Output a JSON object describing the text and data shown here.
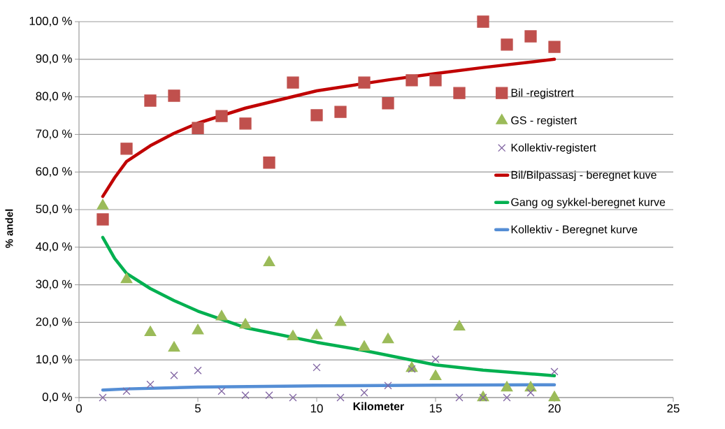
{
  "chart_data": {
    "type": "scatter",
    "xlabel": "Kilometer",
    "ylabel": "% andel",
    "xlim": [
      0,
      25
    ],
    "xticks": [
      0,
      5,
      10,
      15,
      20,
      25
    ],
    "ylim": [
      0,
      100
    ],
    "yticks": [
      {
        "value": 0,
        "label": "0,0 %"
      },
      {
        "value": 10,
        "label": "10,0 %"
      },
      {
        "value": 20,
        "label": "20,0 %"
      },
      {
        "value": 30,
        "label": "30,0 %"
      },
      {
        "value": 40,
        "label": "40,0 %"
      },
      {
        "value": 50,
        "label": "50,0 %"
      },
      {
        "value": 60,
        "label": "60,0 %"
      },
      {
        "value": 70,
        "label": "70,0 %"
      },
      {
        "value": 80,
        "label": "80,0 %"
      },
      {
        "value": 90,
        "label": "90,0 %"
      },
      {
        "value": 100,
        "label": "100,0 %"
      }
    ],
    "grid": "y",
    "legend": "right",
    "series": [
      {
        "name": "Bil -registrert",
        "type": "scatter",
        "marker": "square",
        "color": "#c0504d",
        "x": [
          1,
          2,
          3,
          4,
          5,
          6,
          7,
          8,
          9,
          10,
          11,
          12,
          13,
          14,
          15,
          16,
          17,
          18,
          19,
          20
        ],
        "values": [
          47.4,
          66.2,
          79.0,
          80.3,
          71.7,
          74.9,
          72.9,
          62.5,
          83.8,
          75.1,
          76.0,
          83.8,
          78.3,
          84.4,
          84.4,
          81.0,
          100,
          93.9,
          96.1,
          93.3
        ]
      },
      {
        "name": "GS - registert",
        "type": "scatter",
        "marker": "triangle",
        "color": "#9bbb59",
        "x": [
          1,
          2,
          3,
          4,
          5,
          6,
          7,
          8,
          9,
          10,
          11,
          12,
          13,
          14,
          15,
          16,
          17,
          18,
          19,
          20
        ],
        "values": [
          51.0,
          31.4,
          17.3,
          13.2,
          17.8,
          21.5,
          19.3,
          35.9,
          16.2,
          16.5,
          20.0,
          13.4,
          15.4,
          7.8,
          5.6,
          18.8,
          0.0,
          2.6,
          2.6,
          0.0
        ]
      },
      {
        "name": "Kollektiv-registert",
        "type": "scatter",
        "marker": "cross",
        "color": "#8064a2",
        "x": [
          1,
          2,
          3,
          4,
          5,
          6,
          7,
          8,
          9,
          10,
          11,
          12,
          13,
          14,
          15,
          16,
          17,
          18,
          19,
          20
        ],
        "values": [
          0.0,
          1.7,
          3.5,
          5.9,
          7.2,
          1.7,
          0.6,
          0.6,
          0.0,
          8.0,
          0.0,
          1.3,
          3.2,
          7.6,
          10.2,
          0.0,
          0.0,
          0.0,
          1.3,
          6.9
        ]
      },
      {
        "name": "Bil/Bilpassasj - beregnet kuve",
        "type": "line",
        "marker": "none",
        "color": "#c00000",
        "x": [
          1,
          1.5,
          2,
          3,
          4,
          5,
          7,
          10,
          13,
          15,
          17,
          20
        ],
        "values": [
          53.5,
          58.5,
          62.8,
          67.0,
          70.3,
          73.0,
          77.0,
          81.6,
          84.5,
          86.2,
          87.8,
          90.0
        ]
      },
      {
        "name": "Gang og sykkel-beregnet kurve",
        "type": "line",
        "marker": "none",
        "color": "#00b050",
        "x": [
          1,
          1.5,
          2,
          3,
          4,
          5,
          7,
          10,
          12,
          15,
          17,
          20
        ],
        "values": [
          42.6,
          37.0,
          33.0,
          29.0,
          25.8,
          23.0,
          18.6,
          14.7,
          12.5,
          8.7,
          7.3,
          5.8
        ]
      },
      {
        "name": "Kollektiv - Beregnet kurve",
        "type": "line",
        "marker": "none",
        "color": "#558ed5",
        "x": [
          1,
          2,
          5,
          10,
          15,
          20
        ],
        "values": [
          2.0,
          2.3,
          2.8,
          3.1,
          3.3,
          3.4
        ]
      }
    ]
  }
}
